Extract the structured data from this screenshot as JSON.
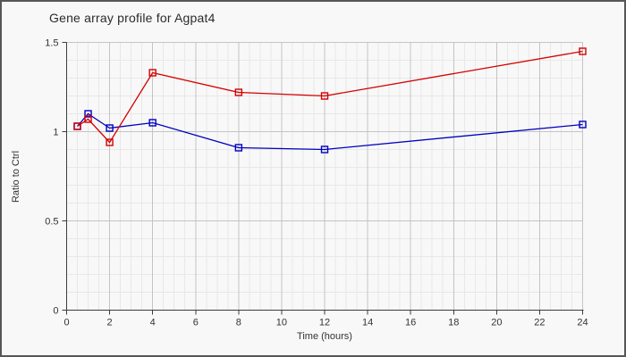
{
  "window": {
    "background": "#f8f8f8",
    "border_color": "#575757"
  },
  "chart_data": {
    "type": "line",
    "title": "Gene array profile for Agpat4",
    "xlabel": "Time (hours)",
    "ylabel": "Ratio to Ctrl",
    "xlim": [
      0,
      24
    ],
    "ylim": [
      0,
      1.5
    ],
    "x_ticks": [
      0,
      2,
      4,
      6,
      8,
      10,
      12,
      14,
      16,
      18,
      20,
      22,
      24
    ],
    "x_tick_labels": [
      "0",
      "2",
      "4",
      "6",
      "8",
      "10",
      "12",
      "14",
      "16",
      "18",
      "20",
      "22",
      "24"
    ],
    "y_ticks": [
      0,
      0.5,
      1,
      1.5
    ],
    "y_tick_labels": [
      "0",
      "0.5",
      "1",
      "1.5"
    ],
    "x_minor_step": 0.5,
    "y_minor_step": 0.1,
    "x_major_step": 2,
    "y_major_step": 0.5,
    "grid": true,
    "legend_position": "none",
    "x": [
      0.5,
      1,
      2,
      4,
      8,
      12,
      24
    ],
    "series": [
      {
        "color": "#0000c0",
        "marker": "open-square",
        "values": [
          1.03,
          1.1,
          1.02,
          1.05,
          0.91,
          0.9,
          1.04
        ]
      },
      {
        "color": "#d40000",
        "marker": "open-square",
        "values": [
          1.03,
          1.07,
          0.94,
          1.33,
          1.22,
          1.2,
          1.45
        ]
      }
    ],
    "style": {
      "grid_minor_color": "#e8e8e8",
      "grid_major_color": "#c4c4c4",
      "axis_color": "#3c3c3c",
      "tick_text_color": "#333333",
      "marker_size": 7,
      "line_width": 1.3
    }
  }
}
